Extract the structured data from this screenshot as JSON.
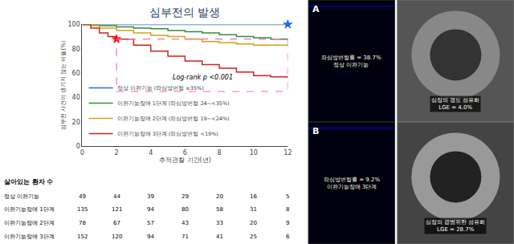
{
  "chart_data": {
    "type": "line",
    "line_style": "step",
    "title": "심부전의 발생",
    "xlabel": "추적관찰 기간(년)",
    "ylabel": "심부전 사건이 생기지 않는 비율(%)",
    "xlim": [
      0,
      12
    ],
    "ylim": [
      0,
      100
    ],
    "xticks": [
      0,
      2,
      4,
      6,
      8,
      10,
      12
    ],
    "yticks": [
      0,
      20,
      40,
      60,
      80,
      100
    ],
    "grid": false,
    "legend": "lower left",
    "series": [
      {
        "name": "정상 이완기능 (좌심방변형 ≥35%)",
        "color": "#1f6fce",
        "x": [
          0,
          1,
          2,
          3,
          4,
          5,
          6,
          7,
          8,
          9,
          10,
          11,
          12
        ],
        "values": [
          100,
          100,
          100,
          100,
          100,
          100,
          100,
          100,
          100,
          100,
          100,
          100,
          100
        ]
      },
      {
        "name": "이완기능장애 1단계 (좌심방변형 24~<35%)",
        "color": "#3a8c3a",
        "x": [
          0,
          0.5,
          1,
          2,
          3,
          4,
          5,
          6,
          7,
          8,
          9,
          10,
          11,
          12
        ],
        "values": [
          100,
          99.5,
          99,
          98,
          97,
          96.5,
          95,
          94,
          93,
          91.5,
          90,
          89,
          88,
          87
        ]
      },
      {
        "name": "이완기능장애 2단계 (좌심방변형 19~<24%)",
        "color": "#d4a017",
        "x": [
          0,
          0.5,
          1,
          2,
          3,
          4,
          5,
          6,
          7,
          8,
          9,
          10,
          11,
          12
        ],
        "values": [
          100,
          99,
          97,
          95,
          93,
          91,
          90,
          88,
          86,
          85,
          84,
          83,
          83,
          82
        ]
      },
      {
        "name": "이완기능장애 3단계 (좌심방변형 <19%)",
        "color": "#cc2222",
        "x": [
          0,
          0.5,
          1,
          1.5,
          2,
          3,
          4,
          5,
          6,
          7,
          8,
          9,
          10,
          11,
          12
        ],
        "values": [
          100,
          97,
          93,
          90,
          88,
          83,
          78,
          74,
          70,
          67,
          64,
          61,
          58,
          57,
          56
        ]
      }
    ],
    "markers": [
      {
        "x": 12,
        "y": 100,
        "color": "#1f6fce",
        "marker": "star"
      },
      {
        "x": 2,
        "y": 88,
        "color": "red",
        "marker": "star"
      }
    ],
    "highlight_box": {
      "x": [
        2,
        12
      ],
      "y": [
        45,
        88
      ],
      "color": "#ff69b4",
      "line_style": "dashed"
    },
    "annotations": [
      {
        "text": "Log-rank p <0.001",
        "x": 5.2,
        "y": 52
      }
    ],
    "at_risk": {
      "header": "살아있는 환자 수",
      "x": [
        0,
        2,
        4,
        6,
        8,
        10,
        12
      ],
      "rows": [
        {
          "name": "정상 이완기능",
          "values": [
            49,
            44,
            39,
            29,
            20,
            16,
            5
          ]
        },
        {
          "name": "이완기능장애 1단계",
          "values": [
            135,
            121,
            94,
            80,
            58,
            31,
            8
          ]
        },
        {
          "name": "이완기능장애 2단계",
          "values": [
            78,
            67,
            57,
            43,
            33,
            20,
            9
          ]
        },
        {
          "name": "이완기능장애 3단계",
          "values": [
            152,
            120,
            94,
            71,
            41,
            25,
            6
          ]
        }
      ]
    },
    "panels": [
      {
        "label": "A",
        "echo_text": [
          "좌심방변형률 = 38.7%",
          "정상 이완기능"
        ],
        "mri_text": [
          "심장의 경도 섬유화",
          "LGE = 4.0%"
        ]
      },
      {
        "label": "B",
        "echo_text": [
          "좌심방변형률 = 9.2%",
          "이완기능장애 3단계"
        ],
        "mri_text": [
          "심장의 광범위한 섬유화",
          "LGE = 28.7%"
        ]
      }
    ]
  }
}
